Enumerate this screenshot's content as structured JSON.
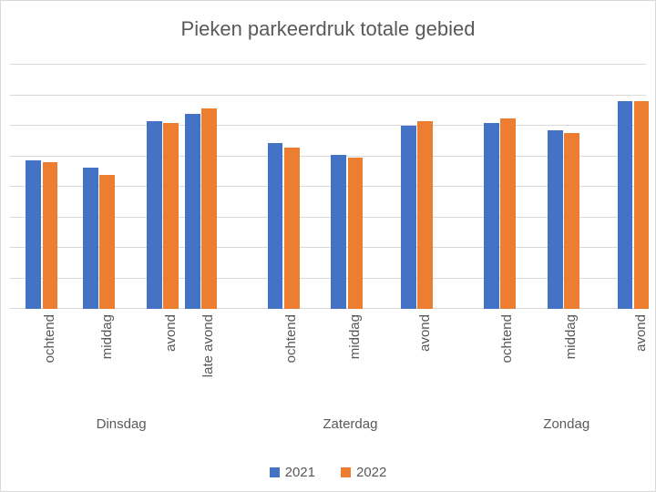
{
  "chart": {
    "type": "bar-grouped",
    "title": "Pieken parkeerdruk totale gebied",
    "title_fontsize": 22,
    "title_color": "#595959",
    "background_color": "#ffffff",
    "frame_border_color": "#d9d9d9",
    "grid_color": "#d9d9d9",
    "label_color": "#595959",
    "label_fontsize": 15,
    "daylabel_fontsize": 15,
    "legend_fontsize": 15,
    "ylim": [
      0,
      100
    ],
    "gridline_step": 12.5,
    "gridline_count": 8,
    "series": [
      {
        "name": "2021",
        "color": "#4472c4"
      },
      {
        "name": "2022",
        "color": "#ed7d31"
      }
    ],
    "bar_width_pct": 2.4,
    "bar_gap_pct": 0.2,
    "groups": [
      {
        "day": "Dinsdag",
        "items": [
          {
            "label": "ochtend",
            "values": [
              61,
              60
            ]
          },
          {
            "label": "middag",
            "values": [
              58,
              55
            ]
          },
          {
            "label": "avond",
            "values": [
              77,
              76
            ]
          },
          {
            "label": "late avond",
            "values": [
              80,
              82
            ]
          }
        ]
      },
      {
        "day": "Zaterdag",
        "items": [
          {
            "label": "ochtend",
            "values": [
              68,
              66
            ]
          },
          {
            "label": "middag",
            "values": [
              63,
              62
            ]
          },
          {
            "label": "avond",
            "values": [
              75,
              77
            ]
          }
        ]
      },
      {
        "day": "Zondag",
        "items": [
          {
            "label": "ochtend",
            "values": [
              76,
              78
            ]
          },
          {
            "label": "middag",
            "values": [
              73,
              72
            ]
          },
          {
            "label": "avond",
            "values": [
              85,
              85
            ]
          }
        ]
      }
    ],
    "slot_positions_pct": [
      5,
      14,
      24,
      30,
      43,
      53,
      64,
      77,
      87,
      98
    ],
    "day_group_ranges": [
      {
        "start": 5,
        "end": 30
      },
      {
        "start": 43,
        "end": 64
      },
      {
        "start": 77,
        "end": 98
      }
    ]
  }
}
